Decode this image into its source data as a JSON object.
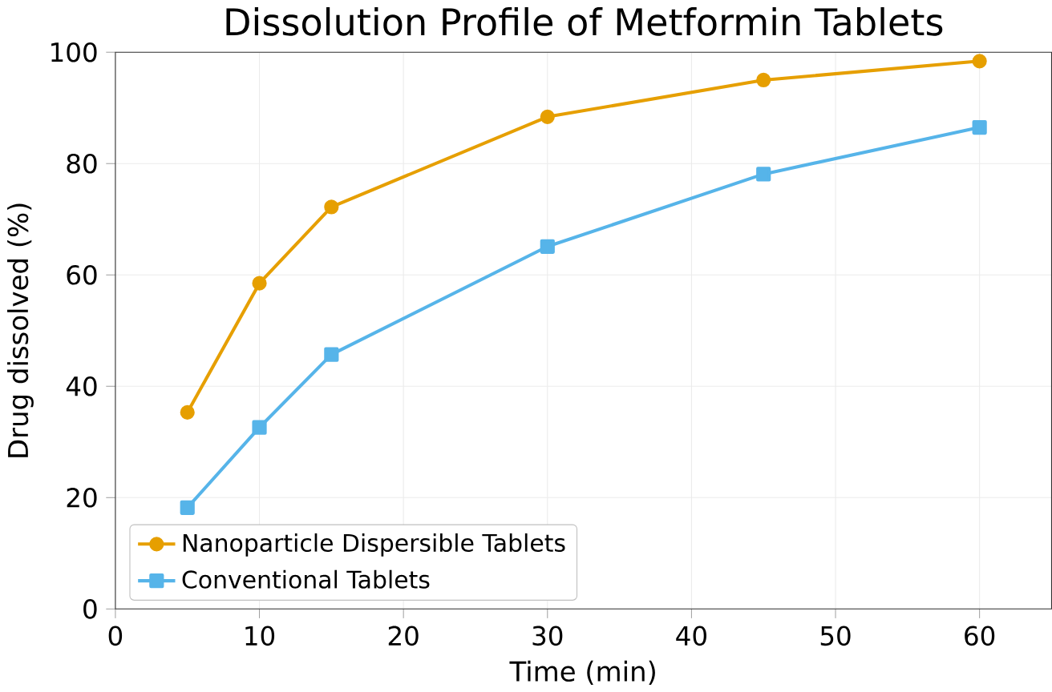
{
  "chart_data": {
    "type": "line",
    "title": "Dissolution Profile of Metformin Tablets",
    "xlabel": "Time (min)",
    "ylabel": "Drug dissolved (%)",
    "x": [
      5,
      10,
      15,
      30,
      45,
      60
    ],
    "series": [
      {
        "name": "Nanoparticle Dispersible Tablets",
        "color": "#e69f00",
        "marker": "circle",
        "values": [
          35.3,
          58.5,
          72.2,
          88.4,
          95.0,
          98.4
        ]
      },
      {
        "name": "Conventional Tablets",
        "color": "#56b4e9",
        "marker": "square",
        "values": [
          18.2,
          32.6,
          45.7,
          65.1,
          78.1,
          86.5
        ]
      }
    ],
    "xlim": [
      0,
      65
    ],
    "ylim": [
      0,
      100
    ],
    "xticks": [
      0,
      10,
      20,
      30,
      40,
      50,
      60
    ],
    "yticks": [
      0,
      20,
      40,
      60,
      80,
      100
    ],
    "grid": true,
    "legend": "bottom left",
    "line_style": "solid"
  }
}
